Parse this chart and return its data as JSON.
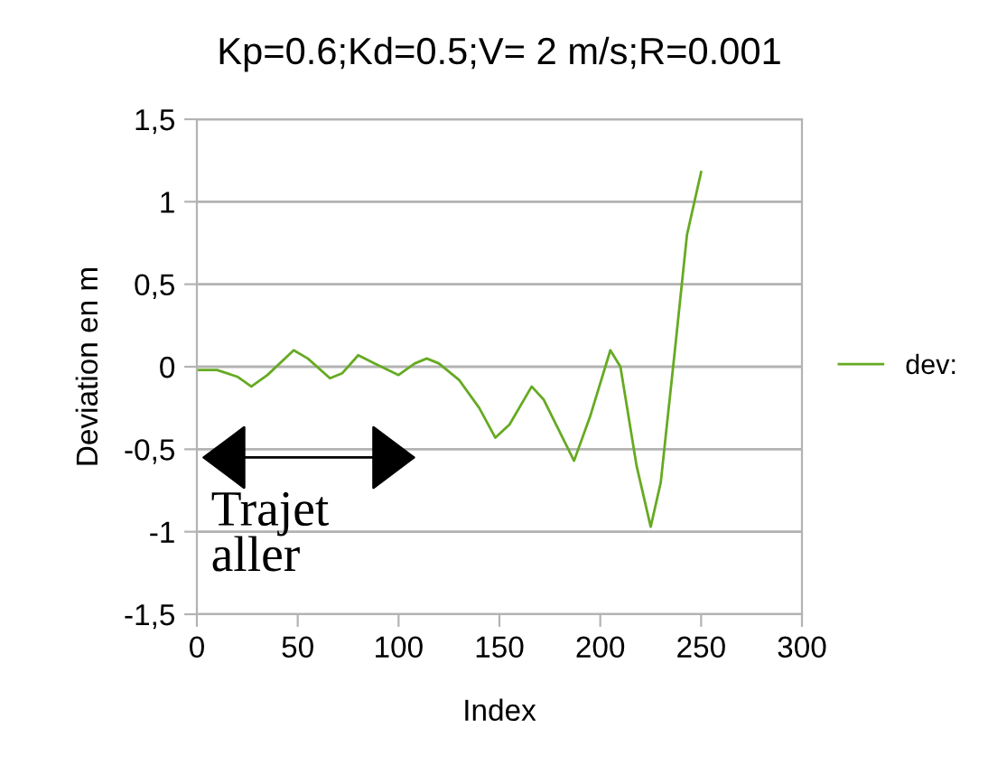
{
  "chart_data": {
    "type": "line",
    "title": "Kp=0.6;Kd=0.5;V= 2 m/s;R=0.001",
    "xlabel": "Index",
    "ylabel": "Deviation en m",
    "x": [
      0,
      10,
      20,
      27,
      35,
      48,
      55,
      66,
      72,
      80,
      88,
      100,
      108,
      114,
      120,
      130,
      140,
      148,
      155,
      166,
      172,
      187,
      195,
      205,
      210,
      218,
      225,
      230,
      237,
      243,
      250
    ],
    "series": [
      {
        "name": "dev:",
        "color": "#66aa22",
        "values": [
          -0.02,
          -0.02,
          -0.06,
          -0.12,
          -0.05,
          0.1,
          0.05,
          -0.07,
          -0.04,
          0.07,
          0.02,
          -0.05,
          0.02,
          0.05,
          0.02,
          -0.08,
          -0.25,
          -0.43,
          -0.35,
          -0.12,
          -0.2,
          -0.57,
          -0.3,
          0.1,
          0.0,
          -0.6,
          -0.97,
          -0.7,
          0.1,
          0.8,
          1.18
        ]
      }
    ],
    "xlim": [
      0,
      300
    ],
    "xticks": [
      0,
      50,
      100,
      150,
      200,
      250,
      300
    ],
    "ylim": [
      -1.5,
      1.5
    ],
    "yticks": [
      {
        "value": -1.5,
        "label": "-1,5"
      },
      {
        "value": -1,
        "label": "-1"
      },
      {
        "value": -0.5,
        "label": "-0,5"
      },
      {
        "value": 0,
        "label": "0"
      },
      {
        "value": 0.5,
        "label": "0,5"
      },
      {
        "value": 1,
        "label": "1"
      },
      {
        "value": 1.5,
        "label": "1,5"
      }
    ],
    "grid": "y",
    "legend": "right",
    "marker": "none",
    "line_style": "solid",
    "annotations": [
      "Trajet\naller"
    ]
  }
}
